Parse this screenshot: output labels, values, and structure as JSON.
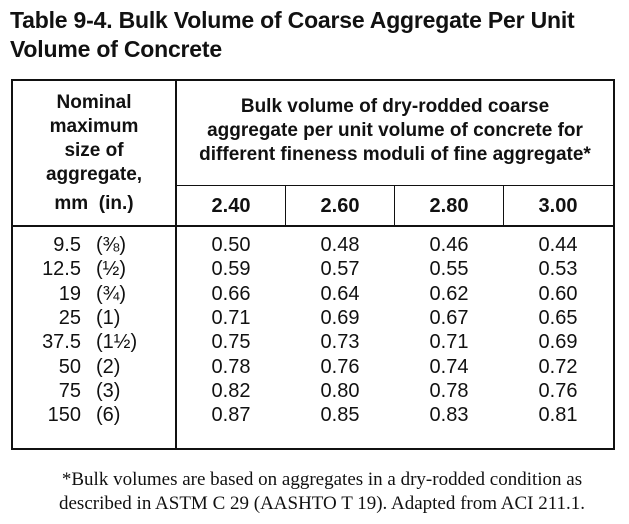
{
  "title": "Table 9-4. Bulk Volume of Coarse Aggregate Per Unit Volume of Concrete",
  "table": {
    "size_header_lines": [
      "Nominal",
      "maximum",
      "size of",
      "aggregate,"
    ],
    "size_header_units_mm": "mm",
    "size_header_units_in": "(in.)",
    "group_header_lines": [
      "Bulk volume of dry-rodded coarse",
      "aggregate per unit volume of concrete for",
      "different fineness moduli of fine aggregate*"
    ],
    "fineness_moduli": [
      "2.40",
      "2.60",
      "2.80",
      "3.00"
    ],
    "rows": [
      {
        "mm": "9.5",
        "in": "(⅜)",
        "values": [
          "0.50",
          "0.48",
          "0.46",
          "0.44"
        ]
      },
      {
        "mm": "12.5",
        "in": "(½)",
        "values": [
          "0.59",
          "0.57",
          "0.55",
          "0.53"
        ]
      },
      {
        "mm": "19",
        "in": "(¾)",
        "values": [
          "0.66",
          "0.64",
          "0.62",
          "0.60"
        ]
      },
      {
        "mm": "25",
        "in": "(1)",
        "values": [
          "0.71",
          "0.69",
          "0.67",
          "0.65"
        ]
      },
      {
        "mm": "37.5",
        "in": "(1½)",
        "values": [
          "0.75",
          "0.73",
          "0.71",
          "0.69"
        ]
      },
      {
        "mm": "50",
        "in": "(2)",
        "values": [
          "0.78",
          "0.76",
          "0.74",
          "0.72"
        ]
      },
      {
        "mm": "75",
        "in": "(3)",
        "values": [
          "0.82",
          "0.80",
          "0.78",
          "0.76"
        ]
      },
      {
        "mm": "150",
        "in": "(6)",
        "values": [
          "0.87",
          "0.85",
          "0.83",
          "0.81"
        ]
      }
    ]
  },
  "footnote_lines": [
    "*Bulk volumes are based on aggregates in a dry-rodded condition as",
    "described in ASTM C 29 (AASHTO T 19). Adapted from ACI 211.1."
  ]
}
